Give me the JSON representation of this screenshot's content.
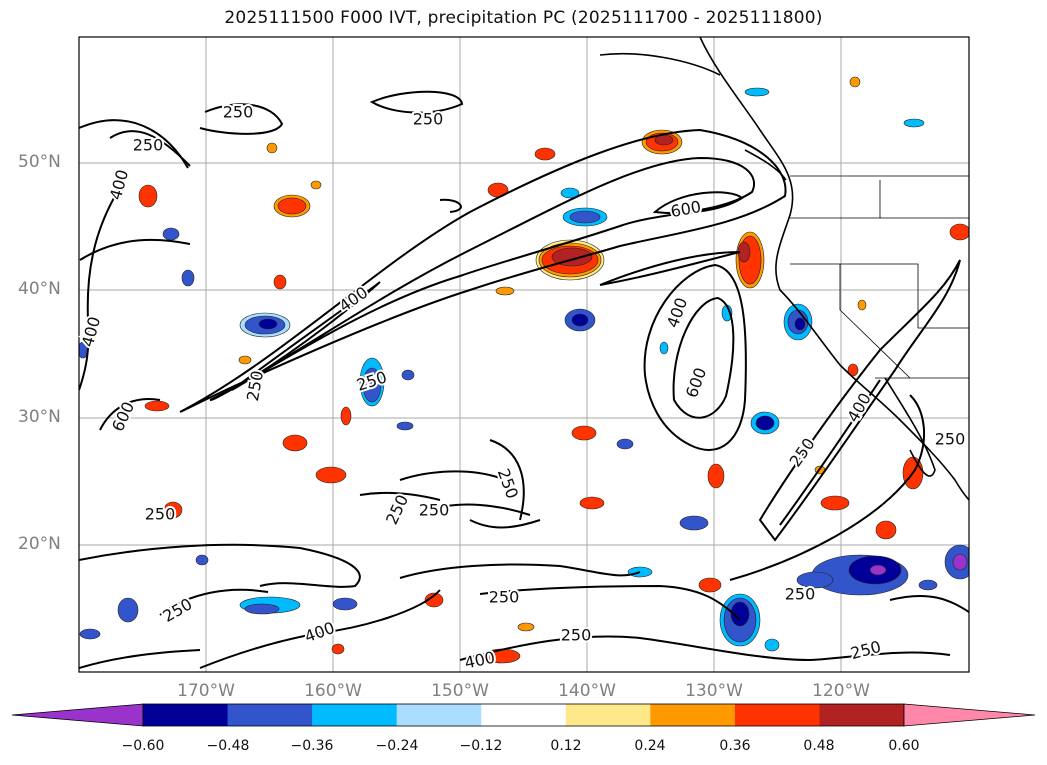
{
  "title": "2025111500 F000 IVT, precipitation PC (2025111700 - 2025111800)",
  "lat_labels": [
    "50°N",
    "40°N",
    "30°N",
    "20°N"
  ],
  "lon_labels": [
    "170°W",
    "160°W",
    "150°W",
    "140°W",
    "130°W",
    "120°W"
  ],
  "contour_labels": [
    "250",
    "250",
    "250",
    "400",
    "400",
    "400",
    "250",
    "600",
    "400",
    "600",
    "400",
    "600",
    "250",
    "250",
    "250",
    "250",
    "250",
    "250",
    "250",
    "250",
    "400",
    "400",
    "250",
    "250",
    "250",
    "250"
  ],
  "colorbar": {
    "ticks": [
      "−0.60",
      "−0.48",
      "−0.36",
      "−0.24",
      "−0.12",
      "0.12",
      "0.24",
      "0.36",
      "0.48",
      "0.60"
    ],
    "colors": [
      "#9933cc",
      "#000099",
      "#3355cc",
      "#00bbff",
      "#aaddff",
      "#ffffff",
      "#ffe88a",
      "#ff9900",
      "#ff3300",
      "#b22222",
      "#ff88aa"
    ]
  }
}
